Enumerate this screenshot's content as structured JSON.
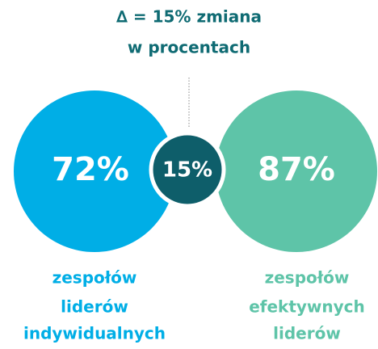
{
  "header": {
    "lines": [
      "∆ = 15% zmiana",
      "w procentach"
    ]
  },
  "circles": [
    {
      "label": "72%"
    },
    {
      "label": "15%"
    },
    {
      "label": "87%"
    }
  ],
  "captions": [
    {
      "lines": [
        "zespołów",
        "liderów",
        "indywidualnych"
      ]
    },
    {
      "lines": [
        "zespołów",
        "efektywnych",
        "liderów"
      ]
    }
  ]
}
